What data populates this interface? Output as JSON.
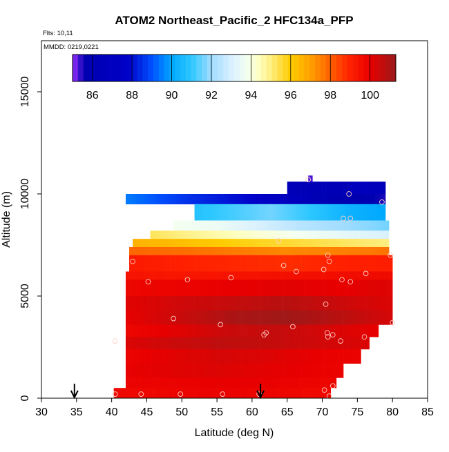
{
  "chart_data": {
    "type": "heatmap",
    "title": "ATOM2 Northeast_Pacific_2 HFC134a_PFP",
    "flights_label": "Flts: 10,11",
    "dates_label": "MMDD: 0219,0221",
    "xlabel": "Latitude (deg N)",
    "ylabel": "Altitude (m)",
    "xlim": [
      30,
      85
    ],
    "ylim": [
      0,
      17500
    ],
    "x_ticks": [
      "30",
      "35",
      "40",
      "45",
      "50",
      "55",
      "60",
      "65",
      "70",
      "75",
      "80",
      "85"
    ],
    "y_ticks": [
      "0",
      "5000",
      "10000",
      "15000"
    ],
    "colorbar": {
      "range": [
        85,
        101.3
      ],
      "ticks": [
        "86",
        "88",
        "90",
        "92",
        "94",
        "96",
        "98",
        "100"
      ]
    },
    "color_stops": [
      {
        "v": 85.0,
        "c": "#9b30ff"
      },
      {
        "v": 85.6,
        "c": "#0000b0"
      },
      {
        "v": 87.8,
        "c": "#0000c8"
      },
      {
        "v": 89.0,
        "c": "#0050ff"
      },
      {
        "v": 90.0,
        "c": "#00a8ff"
      },
      {
        "v": 91.0,
        "c": "#2ec8ff"
      },
      {
        "v": 92.0,
        "c": "#a0dcff"
      },
      {
        "v": 93.0,
        "c": "#d8f0ff"
      },
      {
        "v": 93.8,
        "c": "#f4fff0"
      },
      {
        "v": 94.4,
        "c": "#ffffc0"
      },
      {
        "v": 95.0,
        "c": "#ffee80"
      },
      {
        "v": 96.0,
        "c": "#ffcc00"
      },
      {
        "v": 97.0,
        "c": "#ffa000"
      },
      {
        "v": 98.0,
        "c": "#ff6000"
      },
      {
        "v": 99.0,
        "c": "#ff2000"
      },
      {
        "v": 100.0,
        "c": "#e80000"
      },
      {
        "v": 101.3,
        "c": "#9a1a1a"
      }
    ],
    "flight_arrows_lat": [
      34.7,
      61.2
    ],
    "rows": [
      {
        "alt": [
          10600,
          10900
        ],
        "lat": [
          68.0,
          68.6
        ],
        "v": [
          85.3
        ]
      },
      {
        "alt": [
          10000,
          10600
        ],
        "lat": [
          65.0,
          74.0
        ],
        "v": [
          86.3,
          86.2
        ]
      },
      {
        "alt": [
          10000,
          10600
        ],
        "lat": [
          74.0,
          79.0
        ],
        "v": [
          86.8,
          86.5
        ]
      },
      {
        "alt": [
          9500,
          10000
        ],
        "lat": [
          42.0,
          79.0
        ],
        "v": [
          89.5,
          88.5,
          87.8,
          86.0,
          85.5
        ]
      },
      {
        "alt": [
          8700,
          9500
        ],
        "lat": [
          35.0,
          79.0
        ],
        "v": [
          90.8,
          91.2,
          91.6,
          91.0,
          90.3,
          90.0
        ]
      },
      {
        "alt": [
          8200,
          8700
        ],
        "lat": [
          42.0,
          79.5
        ],
        "v": [
          93.8,
          93.6,
          93.0,
          92.4,
          92.0,
          91.6
        ]
      },
      {
        "alt": [
          7800,
          8200
        ],
        "lat": [
          42.0,
          79.5
        ],
        "v": [
          95.3,
          94.8,
          94.3,
          93.8,
          93.4,
          93.0
        ]
      },
      {
        "alt": [
          7400,
          7800
        ],
        "lat": [
          42.0,
          79.5
        ],
        "v": [
          96.6,
          96.3,
          95.9,
          95.6,
          95.3,
          95.0
        ]
      },
      {
        "alt": [
          7000,
          7400
        ],
        "lat": [
          42.0,
          80.0
        ],
        "v": [
          97.9,
          97.8,
          97.6,
          97.4,
          97.5,
          97.7
        ]
      },
      {
        "alt": [
          6200,
          7000
        ],
        "lat": [
          42.0,
          80.0
        ],
        "v": [
          99.2,
          99.0,
          98.9,
          98.8,
          99.0,
          99.1
        ]
      },
      {
        "alt": [
          5800,
          6200
        ],
        "lat": [
          42.0,
          80.0
        ],
        "v": [
          99.4,
          99.3,
          99.4,
          99.5,
          99.6,
          99.7
        ]
      },
      {
        "alt": [
          5000,
          5800
        ],
        "lat": [
          42.0,
          80.0
        ],
        "v": [
          99.8,
          99.9,
          100.0,
          100.1,
          100.0,
          100.2
        ]
      },
      {
        "alt": [
          4300,
          5000
        ],
        "lat": [
          42.0,
          80.0
        ],
        "v": [
          100.1,
          100.4,
          100.6,
          100.8,
          100.5,
          100.2
        ]
      },
      {
        "alt": [
          3600,
          4300
        ],
        "lat": [
          42.0,
          80.0
        ],
        "v": [
          100.0,
          100.5,
          101.0,
          101.2,
          100.8,
          100.3
        ]
      },
      {
        "alt": [
          3000,
          3600
        ],
        "lat": [
          42.0,
          80.0
        ],
        "v": [
          99.8,
          100.1,
          100.5,
          100.6,
          100.3,
          100.0
        ]
      },
      {
        "alt": [
          2400,
          3000
        ],
        "lat": [
          42.0,
          80.0
        ],
        "v": [
          100.2,
          100.5,
          100.7,
          100.6,
          100.4,
          100.2
        ]
      },
      {
        "alt": [
          1700,
          2400
        ],
        "lat": [
          42.0,
          80.0
        ],
        "v": [
          99.9,
          100.1,
          100.3,
          100.2,
          100.0,
          99.9
        ]
      },
      {
        "alt": [
          1000,
          1700
        ],
        "lat": [
          42.0,
          80.0
        ],
        "v": [
          100.0,
          100.1,
          100.2,
          100.1,
          100.0,
          99.9
        ]
      },
      {
        "alt": [
          500,
          1000
        ],
        "lat": [
          42.0,
          80.0
        ],
        "v": [
          99.9,
          99.9,
          100.0,
          100.0,
          99.9,
          99.8
        ]
      },
      {
        "alt": [
          0,
          500
        ],
        "lat": [
          40.0,
          80.0
        ],
        "v": [
          99.7,
          99.8,
          99.9,
          99.9,
          99.8,
          99.7
        ]
      }
    ],
    "samples": [
      {
        "lat": 68.0,
        "alt": 10700
      },
      {
        "lat": 73.8,
        "alt": 10000
      },
      {
        "lat": 78.5,
        "alt": 9600
      },
      {
        "lat": 73.0,
        "alt": 8800
      },
      {
        "lat": 74.0,
        "alt": 8800
      },
      {
        "lat": 63.8,
        "alt": 7700
      },
      {
        "lat": 79.7,
        "alt": 7000
      },
      {
        "lat": 70.8,
        "alt": 7000
      },
      {
        "lat": 71.0,
        "alt": 6700
      },
      {
        "lat": 43.0,
        "alt": 6700
      },
      {
        "lat": 64.5,
        "alt": 6500
      },
      {
        "lat": 70.2,
        "alt": 6300
      },
      {
        "lat": 66.3,
        "alt": 6200
      },
      {
        "lat": 76.2,
        "alt": 6100
      },
      {
        "lat": 57.0,
        "alt": 5900
      },
      {
        "lat": 50.8,
        "alt": 5800
      },
      {
        "lat": 72.8,
        "alt": 5800
      },
      {
        "lat": 74.0,
        "alt": 5700
      },
      {
        "lat": 45.2,
        "alt": 5700
      },
      {
        "lat": 70.5,
        "alt": 4600
      },
      {
        "lat": 48.8,
        "alt": 3900
      },
      {
        "lat": 55.5,
        "alt": 3600
      },
      {
        "lat": 65.8,
        "alt": 3500
      },
      {
        "lat": 80.0,
        "alt": 3700
      },
      {
        "lat": 62.0,
        "alt": 3200
      },
      {
        "lat": 61.7,
        "alt": 3100
      },
      {
        "lat": 70.7,
        "alt": 3200
      },
      {
        "lat": 71.5,
        "alt": 3100
      },
      {
        "lat": 70.8,
        "alt": 3000
      },
      {
        "lat": 72.6,
        "alt": 2800
      },
      {
        "lat": 40.5,
        "alt": 2800
      },
      {
        "lat": 76.0,
        "alt": 3000
      },
      {
        "lat": 71.5,
        "alt": 600
      },
      {
        "lat": 70.3,
        "alt": 400
      },
      {
        "lat": 71.0,
        "alt": 100
      },
      {
        "lat": 40.5,
        "alt": 200
      },
      {
        "lat": 44.2,
        "alt": 200
      },
      {
        "lat": 49.8,
        "alt": 200
      },
      {
        "lat": 55.8,
        "alt": 200
      },
      {
        "lat": 61.0,
        "alt": 200
      }
    ]
  }
}
